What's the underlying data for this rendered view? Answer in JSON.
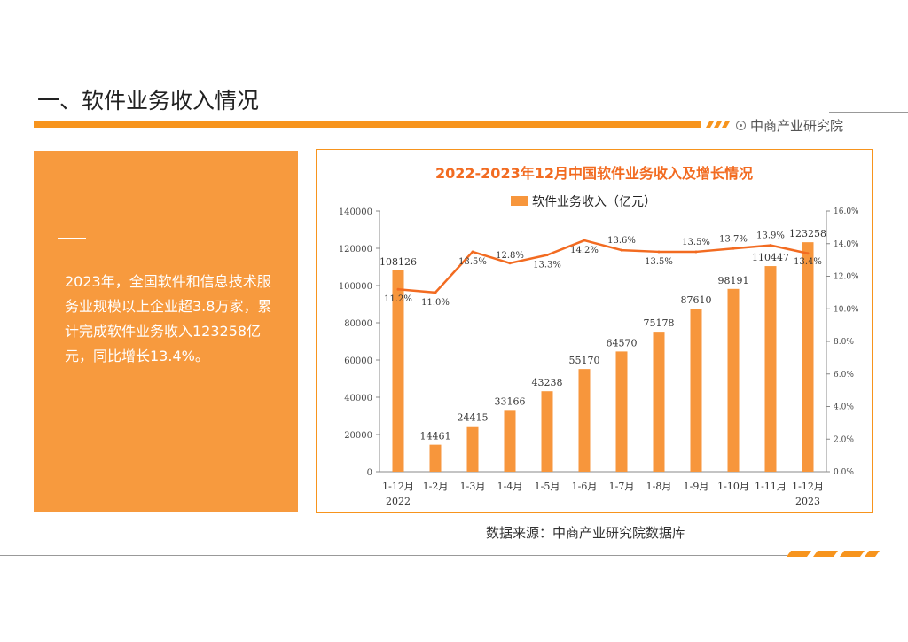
{
  "header": {
    "title": "一、软件业务收入情况",
    "brand": "中商产业研究院"
  },
  "left_panel": {
    "text": "2023年，全国软件和信息技术服务业规模以上企业超3.8万家，累计完成软件业务收入123258亿元，同比增长13.4%。"
  },
  "footer": {
    "source": "数据来源：中商产业研究院数据库"
  },
  "colors": {
    "accent": "#f7941d",
    "bar": "#f7963c",
    "line": "#f26b21",
    "panel": "#f79a3e"
  },
  "chart_data": {
    "type": "bar",
    "title": "2022-2023年12月中国软件业务收入及增长情况",
    "categories": [
      "1-12月",
      "1-2月",
      "1-3月",
      "1-4月",
      "1-5月",
      "1-6月",
      "1-7月",
      "1-8月",
      "1-9月",
      "1-10月",
      "1-11月",
      "1-12月"
    ],
    "year_labels": {
      "first": "2022",
      "last": "2023"
    },
    "legend_position": "top",
    "grid": false,
    "series": [
      {
        "name": "软件业务收入（亿元）",
        "type": "bar",
        "axis": "left",
        "values": [
          108126,
          14461,
          24415,
          33166,
          43238,
          55170,
          64570,
          75178,
          87610,
          98191,
          110447,
          123258
        ],
        "labels": [
          "108126",
          "14461",
          "24415",
          "33166",
          "43238",
          "55170",
          "64570",
          "75178",
          "87610",
          "98191",
          "110447",
          "123258"
        ]
      },
      {
        "type": "line",
        "axis": "right",
        "values": [
          11.2,
          11.0,
          13.5,
          12.8,
          13.3,
          14.2,
          13.6,
          13.5,
          13.5,
          13.7,
          13.9,
          13.4
        ],
        "labels": [
          "11.2%",
          "11.0%",
          "13.5%",
          "12.8%",
          "13.3%",
          "14.2%",
          "13.6%",
          "13.5%",
          "13.5%",
          "13.7%",
          "13.9%",
          "13.4%"
        ]
      }
    ],
    "y_left": {
      "min": 0,
      "max": 140000,
      "ticks": [
        0,
        20000,
        40000,
        60000,
        80000,
        100000,
        120000,
        140000
      ],
      "tick_labels": [
        "0",
        "20000",
        "40000",
        "60000",
        "80000",
        "100000",
        "120000",
        "140000"
      ]
    },
    "y_right": {
      "min": 0,
      "max": 16,
      "ticks": [
        0,
        2,
        4,
        6,
        8,
        10,
        12,
        14,
        16
      ],
      "tick_labels": [
        "0.0%",
        "2.0%",
        "4.0%",
        "6.0%",
        "8.0%",
        "10.0%",
        "12.0%",
        "14.0%",
        "16.0%"
      ]
    }
  }
}
